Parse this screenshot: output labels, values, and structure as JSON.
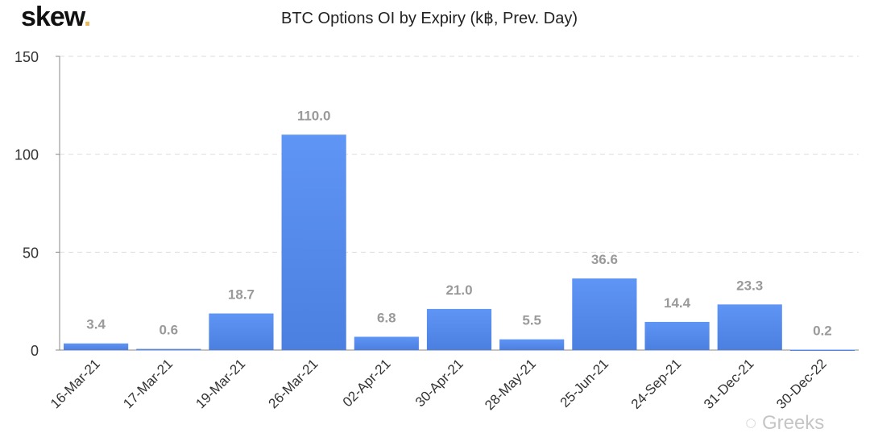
{
  "logo": {
    "text": "skew",
    "dot": "."
  },
  "watermark": "Greeks",
  "chart_data": {
    "type": "bar",
    "title": "BTC Options OI by Expiry (k฿, Prev. Day)",
    "categories": [
      "16-Mar-21",
      "17-Mar-21",
      "19-Mar-21",
      "26-Mar-21",
      "02-Apr-21",
      "30-Apr-21",
      "28-May-21",
      "25-Jun-21",
      "24-Sep-21",
      "31-Dec-21",
      "30-Dec-22"
    ],
    "values": [
      3.4,
      0.6,
      18.7,
      110.0,
      6.8,
      21.0,
      5.5,
      36.6,
      14.4,
      23.3,
      0.2
    ],
    "ylim": [
      0,
      150
    ],
    "yticks": [
      0,
      50,
      100,
      150
    ],
    "grid": true,
    "bar_color": "#5a8ef0",
    "label_color": "#9a9a9a"
  }
}
